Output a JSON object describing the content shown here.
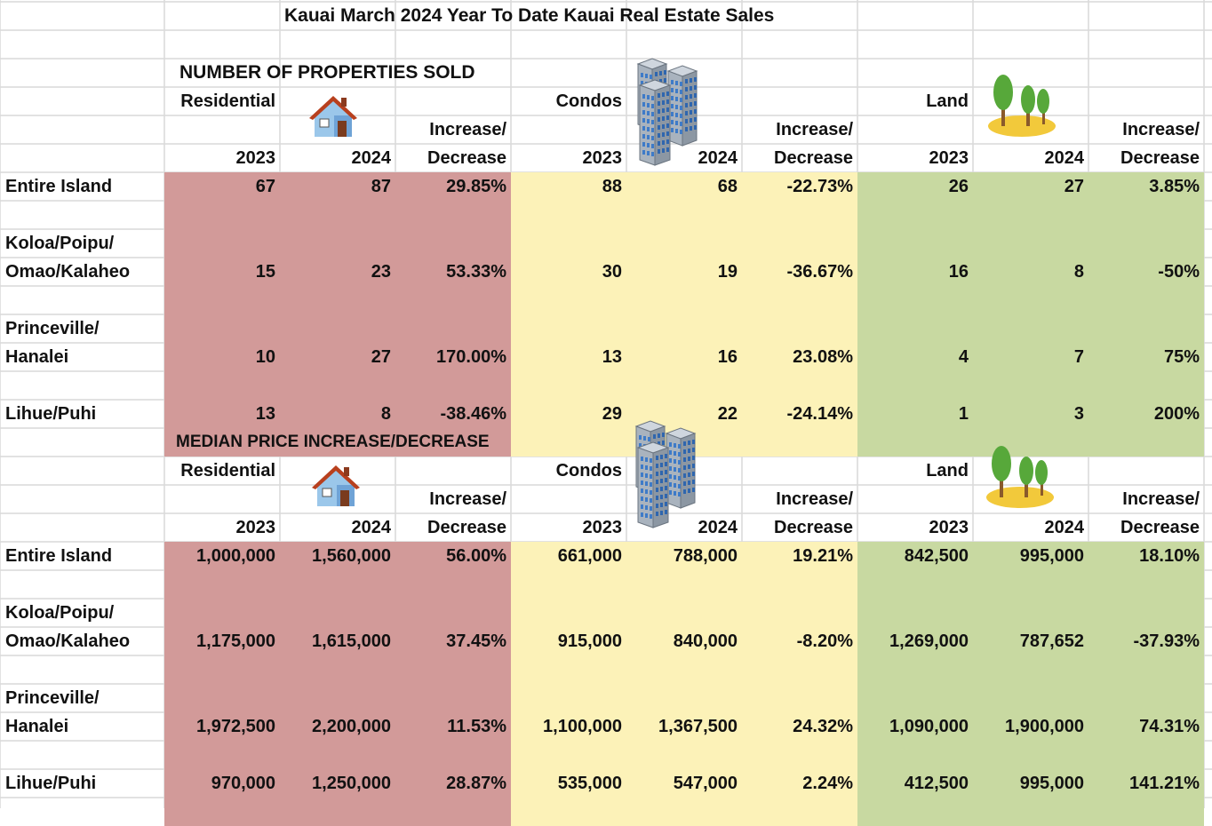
{
  "title": "Kauai March 2024 Year To Date Kauai Real Estate Sales",
  "colors": {
    "residential": "#D29A99",
    "condos": "#FCF2B8",
    "land": "#C8D9A1",
    "grid": "#D9D9D9"
  },
  "sections": [
    {
      "heading": "NUMBER OF PROPERTIES SOLD",
      "groups": [
        {
          "name": "Residential",
          "icon": "house-icon"
        },
        {
          "name": "Condos",
          "icon": "building-icon"
        },
        {
          "name": "Land",
          "icon": "trees-icon"
        }
      ],
      "subheaders": {
        "y2023": "2023",
        "y2024": "2024",
        "change1": "Increase/",
        "change2": "Decrease"
      },
      "rows": [
        {
          "label1": "Entire Island",
          "label2": "",
          "res": [
            "67",
            "87",
            "29.85%"
          ],
          "con": [
            "88",
            "68",
            "-22.73%"
          ],
          "land": [
            "26",
            "27",
            "3.85%"
          ]
        },
        {
          "label1": "Koloa/Poipu/",
          "label2": "Omao/Kalaheo",
          "res": [
            "15",
            "23",
            "53.33%"
          ],
          "con": [
            "30",
            "19",
            "-36.67%"
          ],
          "land": [
            "16",
            "8",
            "-50%"
          ]
        },
        {
          "label1": "Princeville/",
          "label2": "Hanalei",
          "res": [
            "10",
            "27",
            "170.00%"
          ],
          "con": [
            "13",
            "16",
            "23.08%"
          ],
          "land": [
            "4",
            "7",
            "75%"
          ]
        },
        {
          "label1": "Lihue/Puhi",
          "label2": "",
          "res": [
            "13",
            "8",
            "-38.46%"
          ],
          "con": [
            "29",
            "22",
            "-24.14%"
          ],
          "land": [
            "1",
            "3",
            "200%"
          ]
        }
      ]
    },
    {
      "heading": "MEDIAN PRICE INCREASE/DECREASE",
      "groups": [
        {
          "name": "Residential",
          "icon": "house-icon"
        },
        {
          "name": "Condos",
          "icon": "building-icon"
        },
        {
          "name": "Land",
          "icon": "trees-icon"
        }
      ],
      "subheaders": {
        "y2023": "2023",
        "y2024": "2024",
        "change1": "Increase/",
        "change2": "Decrease"
      },
      "rows": [
        {
          "label1": "Entire Island",
          "label2": "",
          "res": [
            "1,000,000",
            "1,560,000",
            "56.00%"
          ],
          "con": [
            "661,000",
            "788,000",
            "19.21%"
          ],
          "land": [
            "842,500",
            "995,000",
            "18.10%"
          ]
        },
        {
          "label1": "Koloa/Poipu/",
          "label2": "Omao/Kalaheo",
          "res": [
            "1,175,000",
            "1,615,000",
            "37.45%"
          ],
          "con": [
            "915,000",
            "840,000",
            "-8.20%"
          ],
          "land": [
            "1,269,000",
            "787,652",
            "-37.93%"
          ]
        },
        {
          "label1": "Princeville/",
          "label2": "Hanalei",
          "res": [
            "1,972,500",
            "2,200,000",
            "11.53%"
          ],
          "con": [
            "1,100,000",
            "1,367,500",
            "24.32%"
          ],
          "land": [
            "1,090,000",
            "1,900,000",
            "74.31%"
          ]
        },
        {
          "label1": "Lihue/Puhi",
          "label2": "",
          "res": [
            "970,000",
            "1,250,000",
            "28.87%"
          ],
          "con": [
            "535,000",
            "547,000",
            "2.24%"
          ],
          "land": [
            "412,500",
            "995,000",
            "141.21%"
          ]
        }
      ]
    }
  ]
}
